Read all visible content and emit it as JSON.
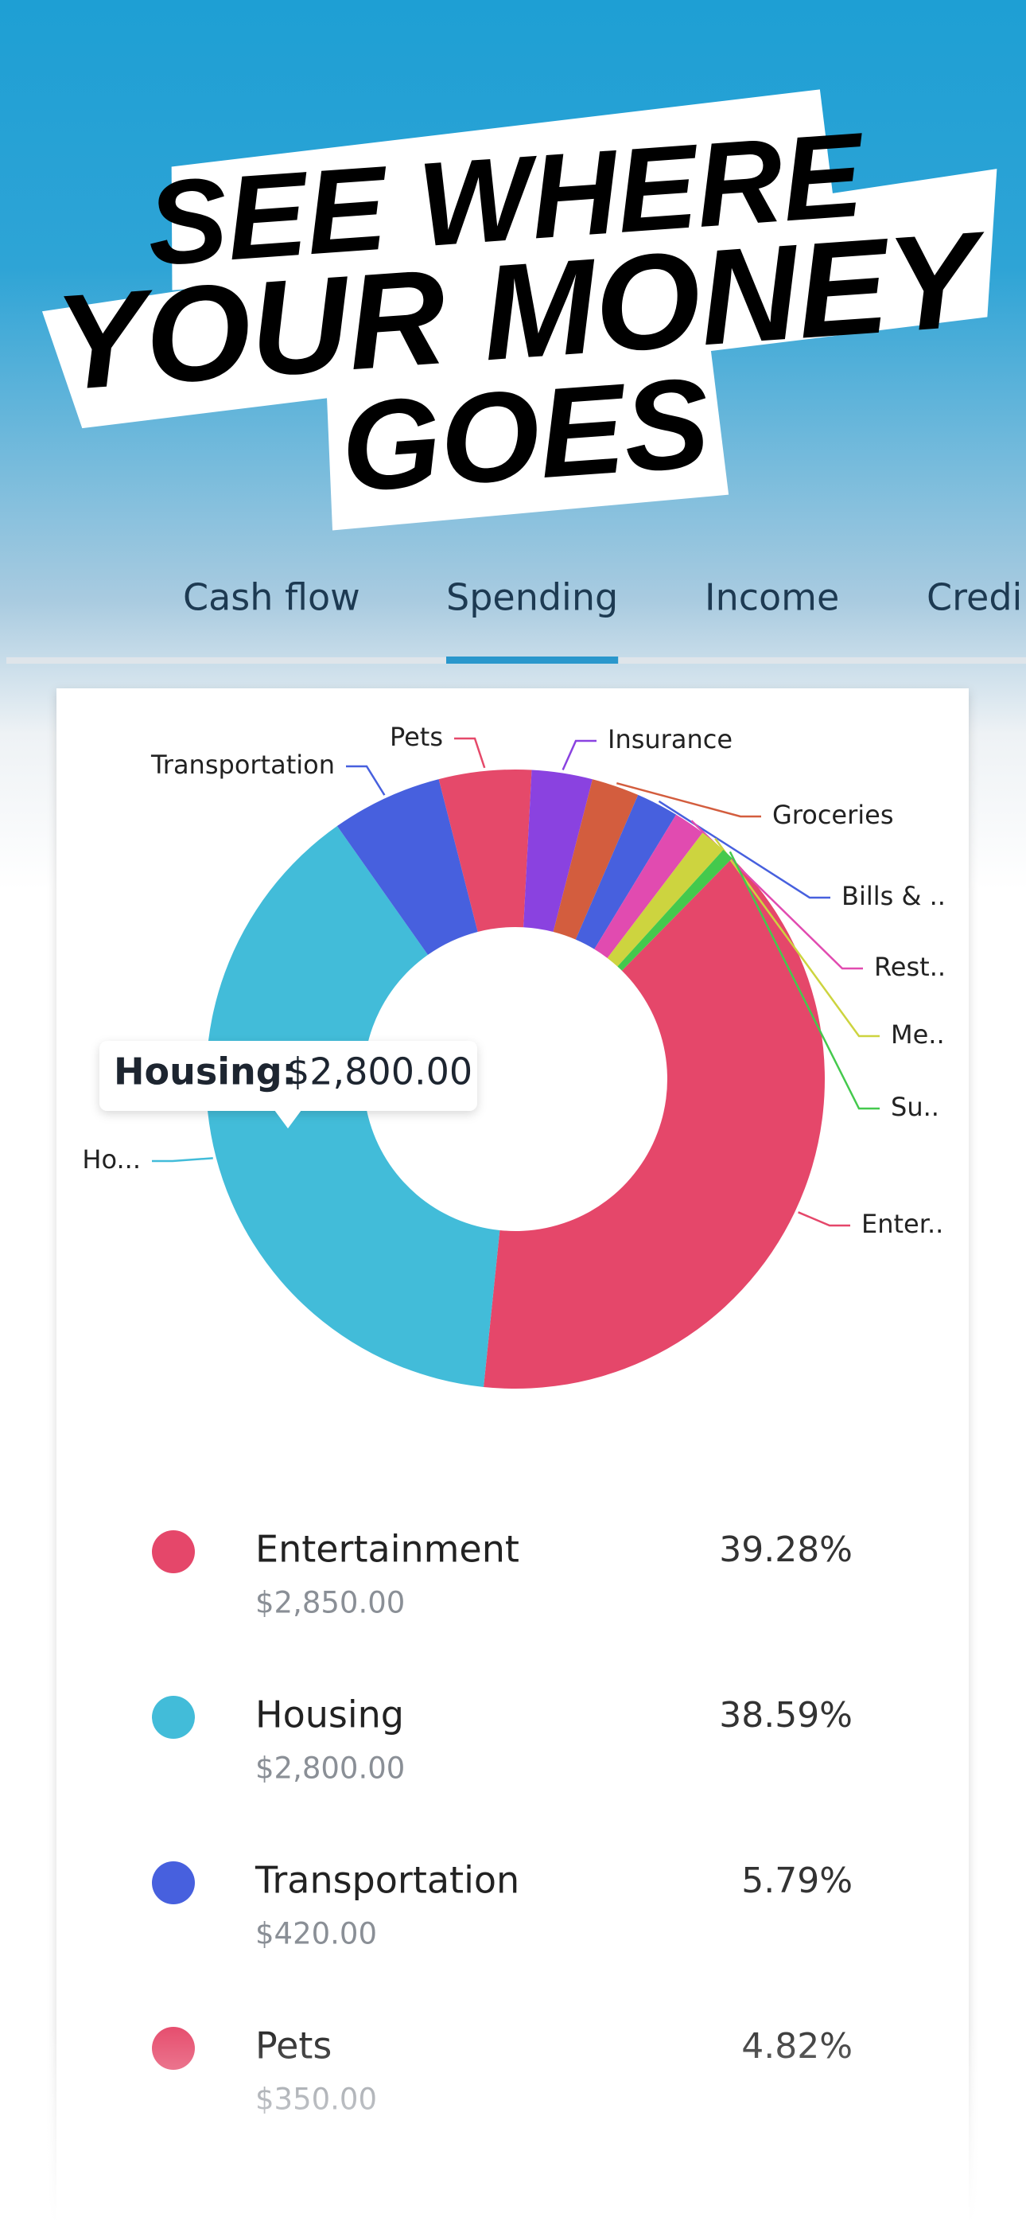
{
  "headline": [
    "SEE WHERE",
    "YOUR MONEY",
    "GOES"
  ],
  "tabs": {
    "items": [
      "Cash flow",
      "Spending",
      "Income",
      "Credi"
    ],
    "active": 1
  },
  "tooltip": {
    "label": "Housing:",
    "value": "$2,800.00"
  },
  "chart_data": {
    "type": "donut",
    "categories": [
      "Enter..",
      "Ho...",
      "Transportation",
      "Pets",
      "Insurance",
      "Groceries",
      "Bills & ..",
      "Rest..",
      "Me..",
      "Su.."
    ],
    "values": [
      2850,
      2800,
      420,
      350,
      230,
      180,
      160,
      120,
      100,
      46
    ],
    "colors": [
      "#e5476a",
      "#42bcd9",
      "#4760de",
      "#e5496a",
      "#8a42e0",
      "#d35d3e",
      "#4760de",
      "#e14bb0",
      "#cdd43f",
      "#44c94d"
    ]
  },
  "list": [
    {
      "name": "Entertainment",
      "amount": "$2,850.00",
      "percent": "39.28%",
      "color": "#e5476a"
    },
    {
      "name": "Housing",
      "amount": "$2,800.00",
      "percent": "38.59%",
      "color": "#42bcd9"
    },
    {
      "name": "Transportation",
      "amount": "$420.00",
      "percent": "5.79%",
      "color": "#4760de"
    },
    {
      "name": "Pets",
      "amount": "$350.00",
      "percent": "4.82%",
      "color": "#e5496a"
    }
  ]
}
